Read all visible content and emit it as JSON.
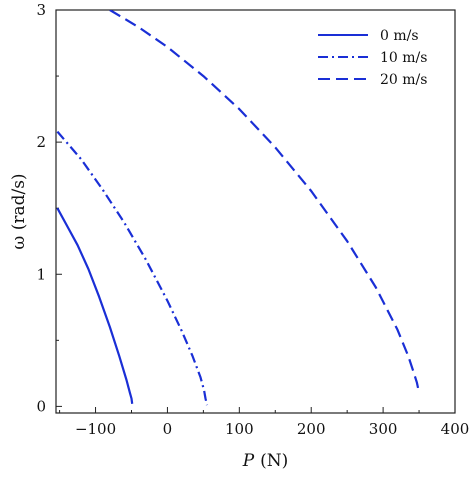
{
  "chart_data": {
    "type": "line",
    "title": "",
    "xlabel_symbol": "P",
    "xlabel_unit": "(N)",
    "ylabel": "ω (rad/s)",
    "xlim": [
      -155,
      400
    ],
    "ylim": [
      -0.05,
      3.0
    ],
    "x_ticks": [
      -100,
      0,
      100,
      200,
      300,
      400
    ],
    "x_tick_labels": [
      "−100",
      "0",
      "100",
      "200",
      "300",
      "400"
    ],
    "y_ticks": [
      0,
      1,
      2,
      3
    ],
    "y_tick_labels": [
      "0",
      "1",
      "2",
      "3"
    ],
    "grid": false,
    "legend_position": "top-right",
    "line_color": "#1a2fd6",
    "series": [
      {
        "name": "0 m/s",
        "dash": "solid",
        "points": [
          [
            -153,
            1.5
          ],
          [
            -140,
            1.37
          ],
          [
            -125,
            1.22
          ],
          [
            -110,
            1.04
          ],
          [
            -95,
            0.83
          ],
          [
            -80,
            0.6
          ],
          [
            -67,
            0.38
          ],
          [
            -57,
            0.2
          ],
          [
            -52,
            0.1
          ],
          [
            -50,
            0.06
          ],
          [
            -49,
            0.02
          ]
        ]
      },
      {
        "name": "10 m/s",
        "dash": "dashdot",
        "points": [
          [
            -153,
            2.08
          ],
          [
            -120,
            1.87
          ],
          [
            -90,
            1.64
          ],
          [
            -60,
            1.39
          ],
          [
            -30,
            1.11
          ],
          [
            0,
            0.8
          ],
          [
            20,
            0.57
          ],
          [
            35,
            0.38
          ],
          [
            46,
            0.22
          ],
          [
            51,
            0.12
          ],
          [
            53,
            0.06
          ],
          [
            55,
            0.01
          ]
        ]
      },
      {
        "name": "20 m/s",
        "dash": "dashed",
        "points": [
          [
            -80,
            3.0
          ],
          [
            -40,
            2.87
          ],
          [
            0,
            2.72
          ],
          [
            50,
            2.5
          ],
          [
            100,
            2.25
          ],
          [
            150,
            1.96
          ],
          [
            200,
            1.63
          ],
          [
            250,
            1.25
          ],
          [
            290,
            0.9
          ],
          [
            320,
            0.58
          ],
          [
            335,
            0.38
          ],
          [
            343,
            0.25
          ],
          [
            347,
            0.18
          ],
          [
            349,
            0.13
          ],
          [
            350,
            0.1
          ]
        ]
      }
    ]
  }
}
